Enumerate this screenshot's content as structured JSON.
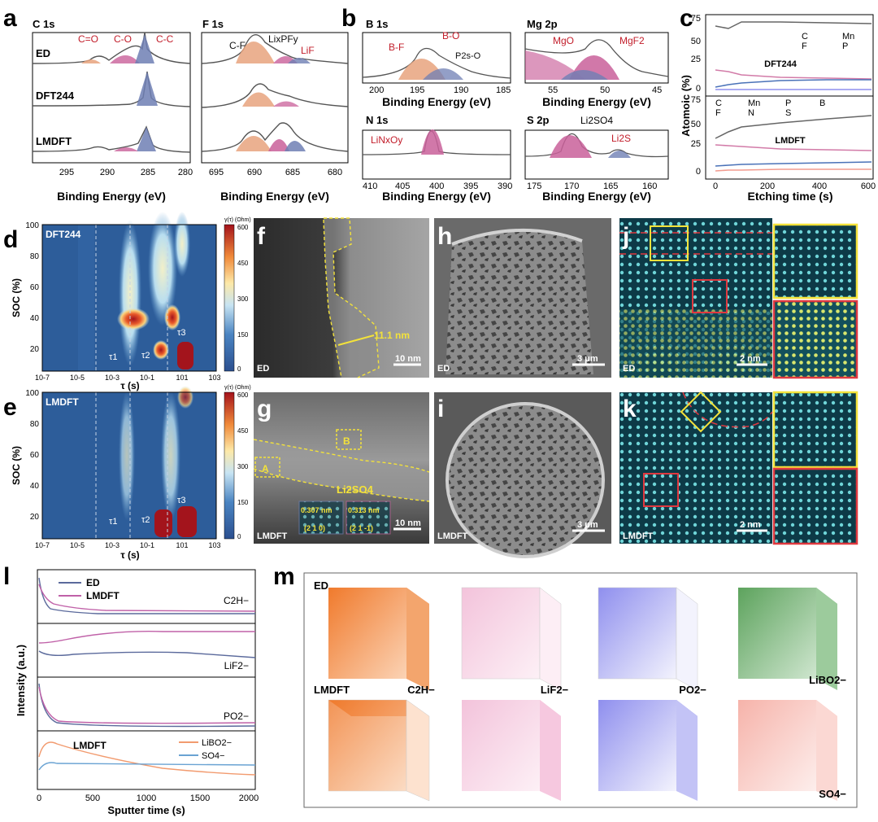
{
  "panels": {
    "a": {
      "letter": "a",
      "c1s": {
        "title": "C 1s",
        "peaks": [
          "C=O",
          "C-O",
          "C-C"
        ],
        "ticks": [
          "295",
          "290",
          "285",
          "280"
        ]
      },
      "f1s": {
        "title": "F 1s",
        "peaks": [
          "C-F",
          "LixPFy",
          "LiF"
        ],
        "ticks": [
          "695",
          "690",
          "685",
          "680"
        ]
      },
      "rows": [
        "ED",
        "DFT244",
        "LMDFT"
      ],
      "xlabel": "Binding Energy (eV)"
    },
    "b": {
      "letter": "b",
      "b1s": {
        "title": "B 1s",
        "peaks": [
          "B-F",
          "B-O",
          "P2s-O"
        ],
        "ticks": [
          "200",
          "195",
          "190",
          "185"
        ]
      },
      "mg2p": {
        "title": "Mg 2p",
        "peaks": [
          "MgO",
          "MgF2"
        ],
        "ticks": [
          "55",
          "50",
          "45"
        ]
      },
      "n1s": {
        "title": "N 1s",
        "peaks": [
          "LiNxOy"
        ],
        "ticks": [
          "410",
          "405",
          "400",
          "395",
          "390"
        ]
      },
      "s2p": {
        "title": "S 2p",
        "peaks": [
          "Li2SO4",
          "Li2S"
        ],
        "ticks": [
          "175",
          "170",
          "165",
          "160"
        ]
      },
      "xlabel": "Binding Energy (eV)"
    },
    "c": {
      "letter": "c",
      "ylabel": "Atomoic (%)",
      "xlabel": "Etching time (s)",
      "top_label": "DFT244",
      "bottom_label": "LMDFT",
      "top_legend": [
        "C",
        "Mn",
        "F",
        "P"
      ],
      "bottom_legend": [
        "C",
        "Mn",
        "P",
        "B",
        "F",
        "N",
        "S"
      ],
      "yticks_top": [
        "75",
        "50",
        "25",
        "0"
      ],
      "yticks_bottom": [
        "75",
        "50",
        "25",
        "0"
      ],
      "xticks": [
        "0",
        "200",
        "400",
        "600"
      ]
    },
    "d": {
      "letter": "d",
      "label": "DFT244",
      "ylabel": "SOC (%)",
      "xlabel": "τ (s)",
      "cbar_title": "γ(τ) (Ohm)",
      "cbar_ticks": [
        "600",
        "450",
        "300",
        "150",
        "0"
      ],
      "taus": [
        "τ1",
        "τ2",
        "τ3"
      ],
      "yticks": [
        "100",
        "80",
        "60",
        "40",
        "20"
      ],
      "xticks": [
        "10-7",
        "10-5",
        "10-3",
        "10-1",
        "101",
        "103"
      ]
    },
    "e": {
      "letter": "e",
      "label": "LMDFT",
      "ylabel": "SOC (%)",
      "xlabel": "τ (s)",
      "cbar_title": "γ(τ) (Ohm)",
      "cbar_ticks": [
        "600",
        "450",
        "300",
        "150",
        "0"
      ],
      "taus": [
        "τ1",
        "τ2",
        "τ3"
      ],
      "yticks": [
        "100",
        "80",
        "60",
        "40",
        "20"
      ],
      "xticks": [
        "10-7",
        "10-5",
        "10-3",
        "10-1",
        "101",
        "103"
      ]
    },
    "f": {
      "letter": "f",
      "sample": "ED",
      "measure": "11.1 nm",
      "scale": "10 nm"
    },
    "g": {
      "letter": "g",
      "sample": "LMDFT",
      "scale": "10 nm",
      "box_a": "A",
      "box_b": "B",
      "layer": "Li2SO4",
      "inset1_d": "0.307 nm",
      "inset1_hkl": "(2 1 0)",
      "inset2_d": "0.313 nm",
      "inset2_hkl": "(2 1 -1)"
    },
    "h": {
      "letter": "h",
      "sample": "ED",
      "scale": "3 μm"
    },
    "i": {
      "letter": "i",
      "sample": "LMDFT",
      "scale": "3 μm"
    },
    "j": {
      "letter": "j",
      "sample": "ED",
      "scale": "2 nm"
    },
    "k": {
      "letter": "k",
      "sample": "LMDFT",
      "scale": "2 nm"
    },
    "l": {
      "letter": "l",
      "ylabel": "Intensity (a.u.)",
      "xlabel": "Sputter time (s)",
      "legend": [
        "ED",
        "LMDFT"
      ],
      "species": [
        "C2H−",
        "LiF2−",
        "PO2−"
      ],
      "bottom_label": "LMDFT",
      "bottom_legend": [
        "LiBO2−",
        "SO4−"
      ],
      "xticks": [
        "0",
        "500",
        "1000",
        "1500",
        "2000"
      ]
    },
    "m": {
      "letter": "m",
      "row1": "ED",
      "row2": "LMDFT",
      "species": [
        "C2H−",
        "LiF2−",
        "PO2−",
        "LiBO2−",
        "SO4−"
      ]
    }
  },
  "colors": {
    "ed": "#5b6a9c",
    "lmdft": "#c061a8",
    "orange": "#f07a2c",
    "pink": "#e9a0c6",
    "blue": "#6e6ee8",
    "green": "#66a866",
    "salmon": "#f29b8f",
    "xps_pink": "#c9609a",
    "xps_blue": "#6f7fb4",
    "xps_orange": "#e8a37e",
    "red_label": "#c21d2a"
  }
}
